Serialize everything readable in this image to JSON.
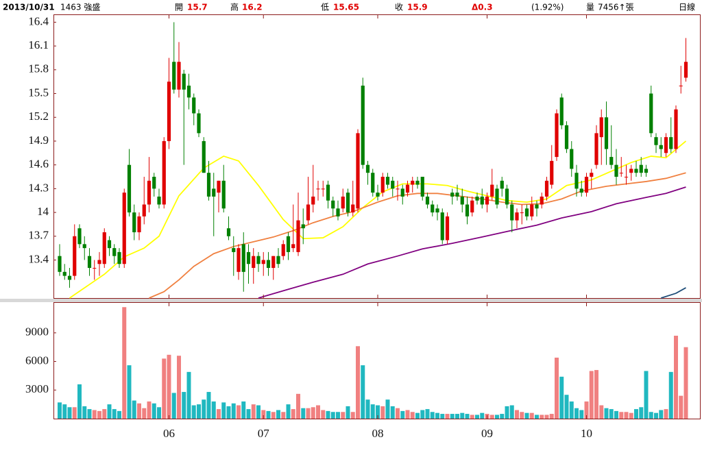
{
  "header": {
    "date": "2013/10/31",
    "stock": "1463 強盛",
    "open_label": "開",
    "open": "15.7",
    "high_label": "高",
    "high": "16.2",
    "low_label": "低",
    "low": "15.65",
    "close_label": "收",
    "close": "15.9",
    "change": "Δ0.3",
    "change_pct": "(1.92%)",
    "volume_label": "量",
    "volume": "7456↑張",
    "period": "日線"
  },
  "chart_data": [
    {
      "type": "candlestick",
      "up_color": "#e00000",
      "down_color": "#008000",
      "ylim": [
        12.92,
        16.49
      ],
      "yticks": [
        13.4,
        13.7,
        14,
        14.3,
        14.6,
        14.9,
        15.2,
        15.5,
        15.8,
        16.1,
        16.4
      ],
      "open": [
        13.45,
        13.25,
        13.2,
        13.2,
        13.8,
        13.6,
        13.45,
        13.3,
        13.35,
        13.35,
        13.65,
        13.55,
        13.5,
        13.35,
        14.6,
        14.0,
        13.75,
        13.95,
        14.1,
        14.45,
        14.2,
        14.1,
        14.9,
        15.9,
        15.55,
        15.75,
        15.6,
        15.45,
        15.25,
        14.9,
        14.5,
        14.3,
        14.25,
        14.4,
        13.8,
        13.55,
        13.25,
        13.6,
        13.5,
        13.3,
        13.45,
        13.35,
        13.4,
        13.3,
        13.45,
        13.45,
        13.7,
        13.55,
        13.5,
        13.85,
        13.9,
        14.1,
        14.3,
        14.3,
        14.35,
        14.15,
        14.05,
        14.05,
        14.25,
        14.0,
        14.05,
        15.6,
        14.6,
        14.5,
        14.25,
        14.25,
        14.45,
        14.4,
        14.3,
        14.3,
        14.25,
        14.35,
        14.4,
        14.45,
        14.2,
        14.1,
        14.05,
        14.0,
        13.65,
        14.25,
        14.25,
        14.2,
        14.1,
        14.0,
        14.2,
        14.2,
        14.1,
        14.2,
        14.3,
        14.4,
        14.3,
        14.1,
        13.9,
        14.0,
        14.05,
        13.95,
        14.1,
        14.1,
        14.2,
        14.35,
        14.7,
        15.45,
        15.1,
        14.8,
        14.5,
        14.3,
        14.25,
        14.45,
        14.6,
        14.95,
        15.2,
        14.7,
        14.6,
        14.5,
        14.45,
        14.5,
        14.55,
        14.6,
        14.55,
        15.5,
        14.95,
        14.85,
        14.75,
        14.95,
        14.8,
        15.6,
        15.7
      ],
      "high": [
        13.6,
        13.35,
        13.3,
        13.85,
        13.85,
        13.7,
        13.55,
        13.4,
        13.5,
        13.8,
        13.7,
        13.6,
        13.55,
        14.3,
        14.8,
        14.1,
        14.0,
        14.45,
        14.7,
        14.5,
        14.3,
        14.95,
        15.95,
        16.4,
        16.15,
        15.8,
        15.75,
        15.5,
        15.3,
        14.95,
        14.65,
        14.5,
        14.4,
        14.6,
        13.95,
        13.7,
        13.6,
        13.75,
        13.6,
        13.55,
        13.5,
        13.5,
        13.5,
        13.45,
        13.55,
        13.65,
        13.75,
        14.1,
        14.25,
        14.05,
        14.45,
        14.6,
        14.4,
        14.4,
        14.4,
        14.2,
        14.15,
        14.3,
        14.3,
        14.4,
        15.05,
        15.7,
        14.65,
        14.55,
        14.35,
        14.5,
        14.5,
        14.45,
        14.4,
        14.35,
        14.4,
        14.45,
        14.45,
        14.45,
        14.25,
        14.15,
        14.1,
        14.05,
        14.0,
        14.3,
        14.35,
        14.3,
        14.2,
        14.2,
        14.25,
        14.3,
        14.25,
        14.55,
        14.35,
        14.45,
        14.35,
        14.15,
        14.05,
        14.1,
        14.1,
        14.2,
        14.15,
        14.25,
        14.45,
        14.85,
        15.3,
        15.5,
        15.15,
        14.9,
        14.6,
        14.4,
        14.5,
        14.55,
        15.1,
        15.3,
        15.4,
        15.1,
        14.8,
        14.7,
        14.6,
        14.6,
        14.65,
        14.7,
        14.6,
        15.6,
        15.0,
        14.95,
        15.0,
        15.2,
        15.35,
        15.85,
        16.2
      ],
      "low": [
        13.2,
        13.15,
        13.05,
        13.15,
        13.55,
        13.4,
        13.2,
        13.15,
        13.2,
        13.3,
        13.45,
        13.35,
        13.3,
        13.3,
        13.95,
        13.65,
        13.65,
        13.85,
        14.0,
        14.2,
        14.05,
        14.05,
        14.8,
        15.5,
        15.45,
        14.6,
        15.3,
        15.1,
        14.95,
        14.5,
        14.15,
        13.7,
        14.0,
        14.0,
        13.65,
        13.2,
        13.15,
        13.0,
        13.1,
        13.1,
        13.25,
        13.2,
        13.2,
        13.15,
        13.3,
        13.4,
        13.4,
        13.5,
        13.45,
        13.6,
        13.85,
        14.0,
        14.15,
        14.2,
        14.05,
        13.95,
        13.9,
        14.0,
        13.95,
        13.95,
        14.0,
        14.55,
        14.35,
        14.2,
        14.15,
        14.2,
        14.3,
        14.2,
        14.15,
        14.1,
        14.2,
        14.25,
        14.3,
        14.15,
        14.05,
        13.95,
        13.9,
        13.6,
        13.6,
        14.1,
        14.15,
        14.0,
        13.85,
        13.95,
        14.1,
        14.05,
        14.0,
        14.15,
        14.05,
        14.2,
        14.05,
        13.75,
        13.8,
        13.85,
        13.9,
        13.9,
        13.95,
        14.05,
        14.15,
        14.3,
        14.65,
        15.05,
        14.75,
        14.45,
        14.2,
        14.2,
        14.2,
        14.3,
        14.55,
        14.6,
        14.6,
        14.55,
        14.35,
        14.45,
        14.35,
        14.4,
        14.45,
        14.45,
        14.45,
        14.95,
        14.75,
        14.7,
        14.7,
        14.75,
        14.75,
        15.5,
        15.65
      ],
      "close": [
        13.25,
        13.2,
        13.15,
        13.7,
        13.6,
        13.55,
        13.3,
        13.3,
        13.4,
        13.75,
        13.55,
        13.45,
        13.35,
        14.25,
        14.0,
        13.75,
        13.95,
        14.1,
        14.4,
        14.3,
        14.1,
        14.9,
        15.65,
        15.55,
        15.9,
        15.55,
        15.45,
        15.25,
        15.0,
        14.5,
        14.2,
        14.2,
        14.4,
        14.05,
        13.7,
        13.5,
        13.55,
        13.25,
        13.35,
        13.45,
        13.35,
        13.4,
        13.3,
        13.45,
        13.35,
        13.6,
        13.5,
        13.6,
        13.9,
        13.8,
        14.1,
        14.2,
        14.3,
        14.3,
        14.15,
        14.05,
        13.95,
        14.2,
        14.0,
        14.1,
        15.0,
        14.6,
        14.5,
        14.25,
        14.2,
        14.45,
        14.35,
        14.3,
        14.3,
        14.2,
        14.35,
        14.4,
        14.35,
        14.2,
        14.1,
        14.0,
        14.0,
        13.65,
        13.95,
        14.2,
        14.2,
        14.1,
        13.95,
        14.15,
        14.15,
        14.1,
        14.2,
        14.35,
        14.1,
        14.3,
        14.1,
        13.9,
        14.0,
        14.0,
        13.95,
        14.1,
        14.05,
        14.2,
        14.4,
        14.65,
        15.25,
        15.1,
        14.8,
        14.55,
        14.3,
        14.25,
        14.45,
        14.5,
        15.0,
        15.2,
        14.8,
        14.6,
        14.45,
        14.5,
        14.45,
        14.55,
        14.5,
        14.5,
        14.5,
        15.0,
        14.85,
        14.8,
        14.95,
        14.8,
        15.3,
        15.6,
        15.9
      ],
      "lines": [
        {
          "color": "#ffff00",
          "x": [
            2,
            9,
            13,
            17,
            20,
            24,
            29,
            33,
            36,
            40,
            45,
            49,
            53,
            57,
            61,
            65,
            69,
            74,
            78,
            82,
            86,
            90,
            94,
            98,
            102,
            107,
            111,
            115,
            119,
            122,
            126
          ],
          "values": [
            12.92,
            13.22,
            13.44,
            13.55,
            13.7,
            14.21,
            14.56,
            14.71,
            14.65,
            14.34,
            13.91,
            13.67,
            13.68,
            13.82,
            14.06,
            14.26,
            14.36,
            14.36,
            14.34,
            14.27,
            14.21,
            14.15,
            14.13,
            14.17,
            14.34,
            14.41,
            14.52,
            14.63,
            14.71,
            14.69,
            14.9
          ]
        },
        {
          "color": "#f08040",
          "x": [
            18,
            21,
            24,
            27,
            31,
            35,
            39,
            43,
            47,
            51,
            55,
            59,
            64,
            68,
            72,
            76,
            80,
            85,
            89,
            93,
            97,
            101,
            105,
            110,
            114,
            118,
            122,
            126
          ],
          "values": [
            12.92,
            13.0,
            13.15,
            13.32,
            13.48,
            13.57,
            13.63,
            13.69,
            13.77,
            13.87,
            13.95,
            14.01,
            14.13,
            14.21,
            14.24,
            14.24,
            14.21,
            14.17,
            14.13,
            14.1,
            14.11,
            14.17,
            14.27,
            14.33,
            14.36,
            14.39,
            14.43,
            14.5
          ]
        },
        {
          "color": "#800080",
          "x": [
            40,
            46,
            51,
            57,
            62,
            68,
            73,
            79,
            85,
            90,
            96,
            101,
            107,
            112,
            118,
            122,
            126
          ],
          "values": [
            12.92,
            13.03,
            13.12,
            13.22,
            13.35,
            13.45,
            13.54,
            13.61,
            13.69,
            13.76,
            13.84,
            13.93,
            14.01,
            14.11,
            14.19,
            14.24,
            14.32
          ]
        },
        {
          "color": "#1f4e79",
          "x": [
            121,
            124,
            126
          ],
          "values": [
            12.92,
            12.98,
            13.05
          ]
        }
      ]
    },
    {
      "type": "bar",
      "up_color": "#f08080",
      "down_color": "#20b8c0",
      "ylim": [
        0,
        12150
      ],
      "yticks": [
        3000,
        6000,
        9000
      ],
      "categories": [
        null,
        null,
        null,
        null,
        null,
        null,
        null,
        null,
        null,
        null,
        null,
        null,
        null,
        null,
        null,
        null,
        null,
        null,
        null,
        null,
        null,
        null,
        "06",
        null,
        null,
        null,
        null,
        null,
        null,
        null,
        null,
        null,
        null,
        null,
        null,
        null,
        null,
        null,
        null,
        null,
        null,
        "07",
        null,
        null,
        null,
        null,
        null,
        null,
        null,
        null,
        null,
        null,
        null,
        null,
        null,
        null,
        null,
        null,
        null,
        null,
        null,
        null,
        null,
        null,
        "08",
        null,
        null,
        null,
        null,
        null,
        null,
        null,
        null,
        null,
        null,
        null,
        null,
        null,
        null,
        null,
        null,
        null,
        null,
        null,
        null,
        null,
        "09",
        null,
        null,
        null,
        null,
        null,
        null,
        null,
        null,
        null,
        null,
        null,
        null,
        null,
        null,
        null,
        null,
        null,
        null,
        null,
        "10",
        null,
        null,
        null,
        null,
        null,
        null,
        null,
        null,
        null,
        null,
        null,
        null,
        null,
        null,
        null,
        null,
        null,
        null,
        null,
        null
      ],
      "values": [
        1700,
        1500,
        1200,
        1200,
        3600,
        1300,
        1000,
        900,
        800,
        1000,
        1500,
        1000,
        800,
        11700,
        5600,
        1900,
        1600,
        1100,
        1800,
        1600,
        1200,
        6300,
        6700,
        2700,
        6600,
        2800,
        4900,
        1400,
        1500,
        2000,
        2800,
        1800,
        1000,
        1700,
        1300,
        1600,
        1400,
        1800,
        1000,
        1500,
        1400,
        900,
        800,
        700,
        900,
        700,
        1500,
        1000,
        2600,
        1100,
        1100,
        1200,
        1400,
        900,
        800,
        700,
        700,
        700,
        1300,
        700,
        7600,
        5600,
        2000,
        1500,
        1400,
        1300,
        2000,
        1300,
        1100,
        800,
        900,
        700,
        600,
        900,
        1000,
        700,
        600,
        500,
        500,
        500,
        500,
        600,
        500,
        400,
        400,
        600,
        500,
        400,
        400,
        500,
        1300,
        1400,
        900,
        700,
        600,
        600,
        400,
        400,
        400,
        500,
        6400,
        4400,
        2500,
        1800,
        1100,
        900,
        1800,
        5000,
        5100,
        1400,
        1100,
        1000,
        800,
        700,
        700,
        600,
        1000,
        1200,
        5000,
        700,
        600,
        900,
        1000,
        4900,
        8700,
        2400,
        7500
      ]
    }
  ]
}
